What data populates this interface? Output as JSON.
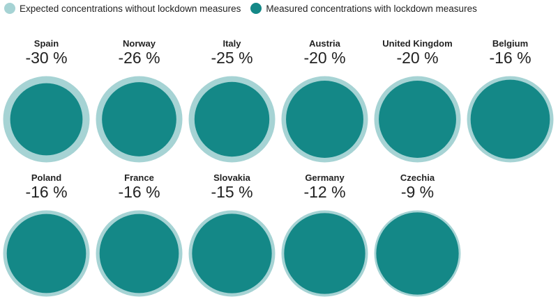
{
  "chart_data": {
    "type": "bubble-comparison",
    "legend_placement": "top-left",
    "legend": [
      {
        "label": "Expected concentrations without lockdown measures",
        "color": "#a6d3d4"
      },
      {
        "label": "Measured concentrations with lockdown measures",
        "color": "#148887"
      }
    ],
    "unit": "%",
    "items": [
      {
        "country": "Spain",
        "change": -30,
        "label": "-30 %"
      },
      {
        "country": "Norway",
        "change": -26,
        "label": "-26 %"
      },
      {
        "country": "Italy",
        "change": -25,
        "label": "-25 %"
      },
      {
        "country": "Austria",
        "change": -20,
        "label": "-20 %"
      },
      {
        "country": "United Kingdom",
        "change": -20,
        "label": "-20 %"
      },
      {
        "country": "Belgium",
        "change": -16,
        "label": "-16 %"
      },
      {
        "country": "Poland",
        "change": -16,
        "label": "-16 %"
      },
      {
        "country": "France",
        "change": -16,
        "label": "-16 %"
      },
      {
        "country": "Slovakia",
        "change": -15,
        "label": "-15 %"
      },
      {
        "country": "Germany",
        "change": -12,
        "label": "-12 %"
      },
      {
        "country": "Czechia",
        "change": -9,
        "label": "-9 %"
      }
    ]
  }
}
